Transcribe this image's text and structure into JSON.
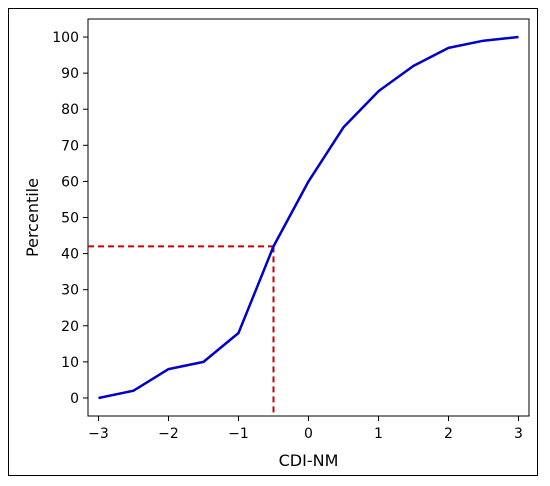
{
  "chart_data": {
    "type": "line",
    "title": "",
    "xlabel": "CDI-NM",
    "ylabel": "Percentile",
    "xlim": [
      -3.15,
      3.15
    ],
    "ylim": [
      -5,
      105
    ],
    "x_ticks": [
      -3,
      -2,
      -1,
      0,
      1,
      2,
      3
    ],
    "x_tick_labels": [
      "−3",
      "−2",
      "−1",
      "0",
      "1",
      "2",
      "3"
    ],
    "y_ticks": [
      0,
      10,
      20,
      30,
      40,
      50,
      60,
      70,
      80,
      90,
      100
    ],
    "y_tick_labels": [
      "0",
      "10",
      "20",
      "30",
      "40",
      "50",
      "60",
      "70",
      "80",
      "90",
      "100"
    ],
    "grid": false,
    "legend": "none",
    "series": [
      {
        "color": "#0000cc",
        "x": [
          -3.0,
          -2.5,
          -2.0,
          -1.5,
          -1.0,
          -0.5,
          0.0,
          0.5,
          1.0,
          1.5,
          2.0,
          2.5,
          3.0
        ],
        "y": [
          0,
          2,
          8,
          10,
          18,
          42,
          60,
          75,
          85,
          92,
          97,
          99,
          100
        ]
      }
    ],
    "reference_lines": {
      "color": "#cc0000",
      "x": -0.5,
      "y": 42
    }
  }
}
